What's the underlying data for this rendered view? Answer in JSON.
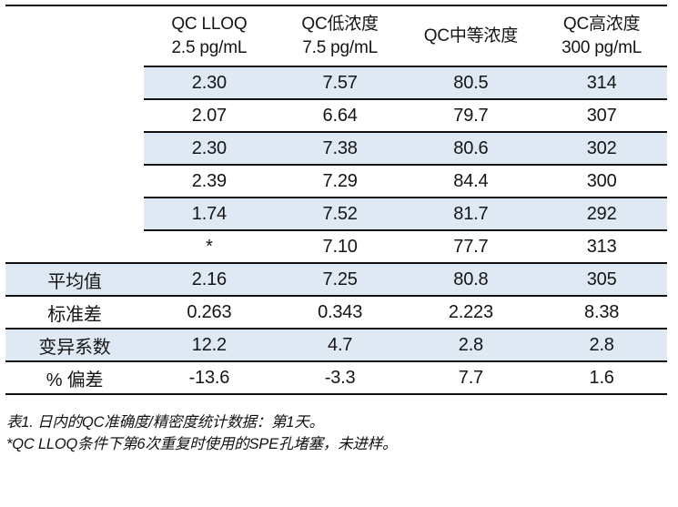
{
  "table": {
    "header": {
      "cols": [
        {
          "line1": "QC LLOQ",
          "line2": "2.5 pg/mL"
        },
        {
          "line1": "QC低浓度",
          "line2": "7.5 pg/mL"
        },
        {
          "line1": "QC中等浓度",
          "line2": ""
        },
        {
          "line1": "QC高浓度",
          "line2": "300 pg/mL"
        }
      ]
    },
    "rows": [
      {
        "label": "",
        "values": [
          "2.30",
          "7.57",
          "80.5",
          "314"
        ],
        "shaded": true,
        "line_full": false
      },
      {
        "label": "",
        "values": [
          "2.07",
          "6.64",
          "79.7",
          "307"
        ],
        "shaded": false,
        "line_full": false
      },
      {
        "label": "",
        "values": [
          "2.30",
          "7.38",
          "80.6",
          "302"
        ],
        "shaded": true,
        "line_full": false
      },
      {
        "label": "",
        "values": [
          "2.39",
          "7.29",
          "84.4",
          "300"
        ],
        "shaded": false,
        "line_full": false
      },
      {
        "label": "",
        "values": [
          "1.74",
          "7.52",
          "81.7",
          "292"
        ],
        "shaded": true,
        "line_full": false
      },
      {
        "label": "",
        "values": [
          "*",
          "7.10",
          "77.7",
          "313"
        ],
        "shaded": false,
        "line_full": true
      },
      {
        "label": "平均值",
        "values": [
          "2.16",
          "7.25",
          "80.8",
          "305"
        ],
        "shaded": true,
        "line_full": true
      },
      {
        "label": "标准差",
        "values": [
          "0.263",
          "0.343",
          "2.223",
          "8.38"
        ],
        "shaded": false,
        "line_full": true
      },
      {
        "label": "变异系数",
        "values": [
          "12.2",
          "4.7",
          "2.8",
          "2.8"
        ],
        "shaded": true,
        "line_full": true
      },
      {
        "label": "% 偏差",
        "values": [
          "-13.6",
          "-3.3",
          "7.7",
          "1.6"
        ],
        "shaded": false,
        "line_full": true
      }
    ]
  },
  "caption": {
    "line1": "表1. 日内的QC准确度/精密度统计数据：第1天。",
    "line2": "*QC LLOQ条件下第6次重复时使用的SPE孔堵塞，未进样。"
  },
  "colors": {
    "row_shade": "#dfe9f3",
    "rule_line": "#111111",
    "text": "#151515"
  }
}
